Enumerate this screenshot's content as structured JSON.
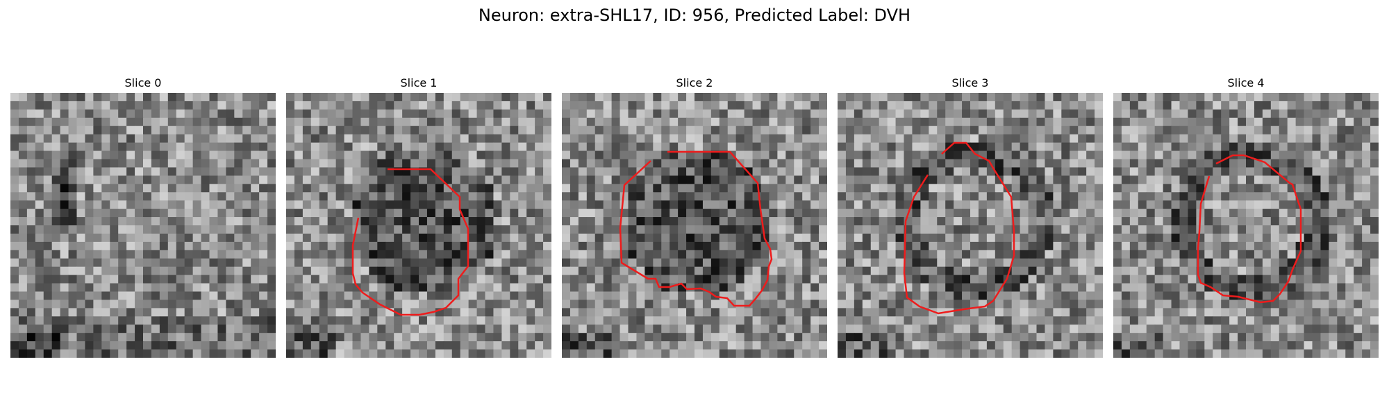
{
  "title": "Neuron: extra-SHL17, ID: 956, Predicted Label: DVH",
  "contour_color": "#ee1c1c",
  "slices": [
    {
      "label": "Slice 0",
      "seed": 11,
      "has_contour": false,
      "dark_center": false
    },
    {
      "label": "Slice 1",
      "seed": 23,
      "has_contour": true,
      "dark_center": true
    },
    {
      "label": "Slice 2",
      "seed": 37,
      "has_contour": true,
      "dark_center": true
    },
    {
      "label": "Slice 3",
      "seed": 41,
      "has_contour": true,
      "dark_center": false
    },
    {
      "label": "Slice 4",
      "seed": 53,
      "has_contour": true,
      "dark_center": false
    }
  ]
}
